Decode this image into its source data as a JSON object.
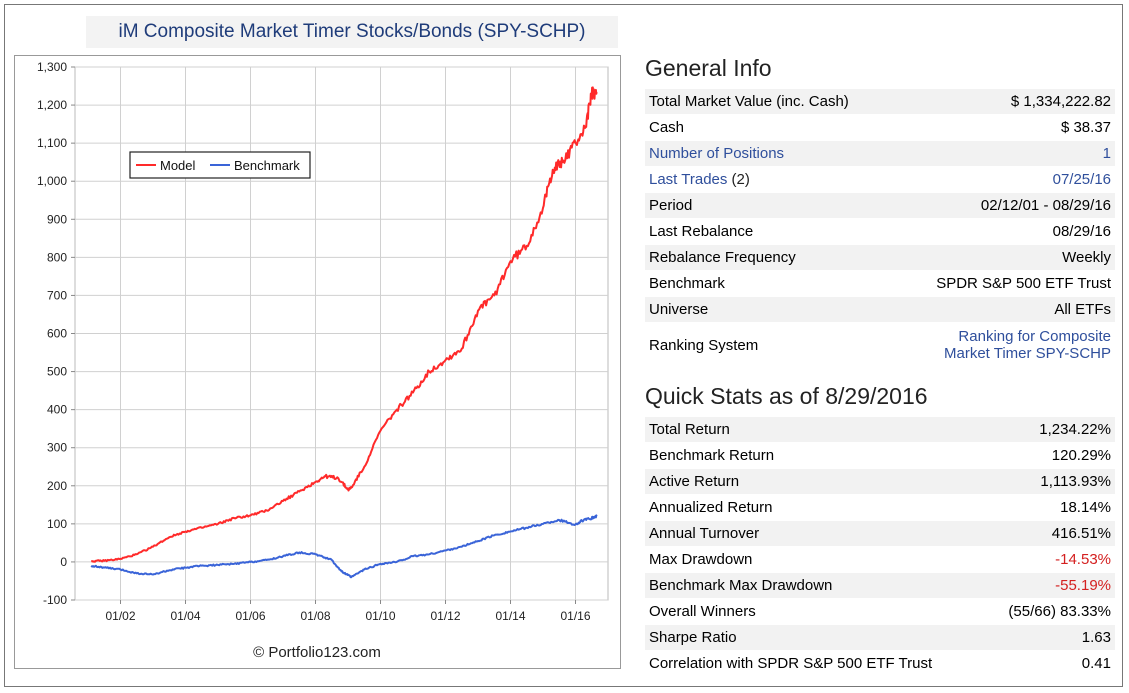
{
  "chart_data": {
    "type": "line",
    "title": "iM Composite Market Timer Stocks/Bonds (SPY-SCHP)",
    "ylim": [
      -100,
      1300
    ],
    "yticks": [
      -100,
      0,
      100,
      200,
      300,
      400,
      500,
      600,
      700,
      800,
      900,
      1000,
      1100,
      1200,
      1300
    ],
    "ytick_labels": [
      "-100",
      "0",
      "100",
      "200",
      "300",
      "400",
      "500",
      "600",
      "700",
      "800",
      "900",
      "1,000",
      "1,100",
      "1,200",
      "1,300"
    ],
    "xlim": [
      2000.6,
      2017.0
    ],
    "xticks": [
      2002,
      2004,
      2006,
      2008,
      2010,
      2012,
      2014,
      2016
    ],
    "xtick_labels": [
      "01/02",
      "01/04",
      "01/06",
      "01/08",
      "01/10",
      "01/12",
      "01/14",
      "01/16"
    ],
    "legend": "top-left",
    "grid": true,
    "credit": "© Portfolio123.com",
    "series": [
      {
        "name": "Model",
        "color": "#ff2a2a",
        "x": [
          2001.1,
          2001.5,
          2002.0,
          2002.5,
          2003.0,
          2003.5,
          2004.0,
          2004.5,
          2005.0,
          2005.5,
          2006.0,
          2006.5,
          2007.0,
          2007.5,
          2008.0,
          2008.3,
          2008.7,
          2009.0,
          2009.1,
          2009.5,
          2010.0,
          2010.5,
          2011.0,
          2011.5,
          2012.0,
          2012.5,
          2013.0,
          2013.5,
          2014.0,
          2014.5,
          2015.0,
          2015.3,
          2015.6,
          2016.0,
          2016.3,
          2016.5,
          2016.65
        ],
        "y": [
          2,
          3,
          8,
          20,
          40,
          65,
          80,
          90,
          100,
          115,
          122,
          135,
          160,
          185,
          210,
          225,
          220,
          190,
          195,
          250,
          345,
          400,
          445,
          500,
          530,
          560,
          660,
          700,
          790,
          830,
          930,
          1030,
          1050,
          1100,
          1140,
          1230,
          1234
        ]
      },
      {
        "name": "Benchmark",
        "color": "#3a64d8",
        "x": [
          2001.1,
          2001.5,
          2002.0,
          2002.5,
          2003.0,
          2003.5,
          2004.0,
          2004.5,
          2005.0,
          2005.5,
          2006.0,
          2006.5,
          2007.0,
          2007.5,
          2008.0,
          2008.5,
          2008.8,
          2009.1,
          2009.5,
          2010.0,
          2010.5,
          2011.0,
          2011.5,
          2012.0,
          2012.5,
          2013.0,
          2013.5,
          2014.0,
          2014.5,
          2015.0,
          2015.5,
          2016.0,
          2016.2,
          2016.5,
          2016.65
        ],
        "y": [
          -10,
          -15,
          -20,
          -30,
          -33,
          -22,
          -15,
          -10,
          -8,
          -5,
          0,
          5,
          15,
          25,
          20,
          5,
          -25,
          -40,
          -20,
          -5,
          0,
          15,
          20,
          30,
          40,
          55,
          70,
          80,
          90,
          100,
          110,
          98,
          108,
          115,
          120
        ]
      }
    ]
  },
  "general_info": {
    "title": "General Info",
    "rows": [
      {
        "label": "Total Market Value (inc. Cash)",
        "value": "$ 1,334,222.82"
      },
      {
        "label": "Cash",
        "value": "$ 38.37"
      },
      {
        "label": "Number of Positions",
        "value": "1"
      },
      {
        "label": "Last Trades",
        "label_suffix": " (2)",
        "value": "07/25/16"
      },
      {
        "label": "Period",
        "value": "02/12/01 - 08/29/16"
      },
      {
        "label": "Last Rebalance",
        "value": "08/29/16"
      },
      {
        "label": "Rebalance Frequency",
        "value": "Weekly"
      },
      {
        "label": "Benchmark",
        "value": "SPDR S&P 500 ETF Trust"
      },
      {
        "label": "Universe",
        "value": "All ETFs"
      },
      {
        "label": "Ranking System",
        "value_line1": "Ranking for Composite",
        "value_line2": "Market Timer SPY-SCHP"
      }
    ]
  },
  "quick_stats": {
    "title": "Quick Stats as of 8/29/2016",
    "rows": [
      {
        "label": "Total Return",
        "value": "1,234.22%"
      },
      {
        "label": "Benchmark Return",
        "value": "120.29%"
      },
      {
        "label": "Active Return",
        "value": "1,113.93%"
      },
      {
        "label": "Annualized Return",
        "value": "18.14%"
      },
      {
        "label": "Annual Turnover",
        "value": "416.51%"
      },
      {
        "label": "Max Drawdown",
        "value": "-14.53%"
      },
      {
        "label": "Benchmark Max Drawdown",
        "value": "-55.19%"
      },
      {
        "label": "Overall Winners",
        "value": "(55/66) 83.33%"
      },
      {
        "label": "Sharpe Ratio",
        "value": "1.63"
      },
      {
        "label": "Correlation with SPDR S&P 500 ETF Trust",
        "value": "0.41"
      }
    ]
  }
}
